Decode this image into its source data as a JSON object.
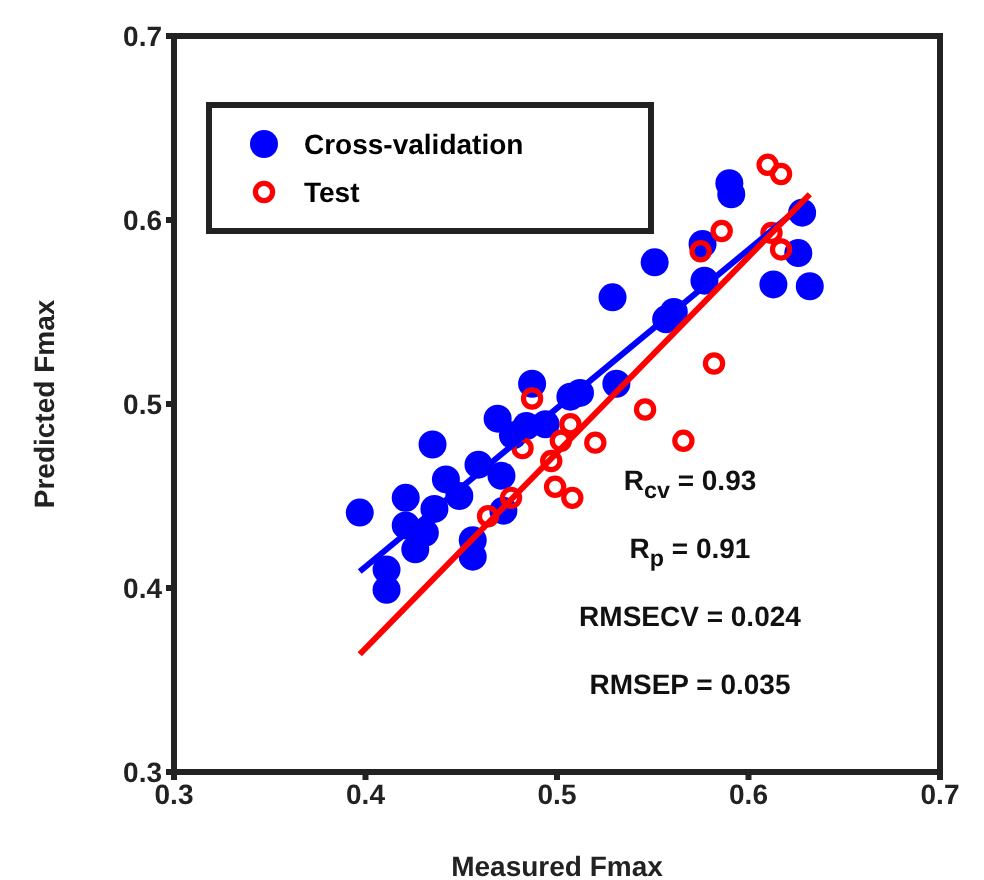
{
  "chart_data": {
    "type": "scatter",
    "xlabel": "Measured Fmax",
    "ylabel": "Predicted Fmax",
    "xlim": [
      0.3,
      0.7
    ],
    "xticks": [
      0.3,
      0.4,
      0.5,
      0.6,
      0.7
    ],
    "ylim": [
      0.3,
      0.7
    ],
    "yticks": [
      0.3,
      0.4,
      0.5,
      0.6,
      0.7
    ],
    "grid": false,
    "legend": "top left",
    "marker": "circle",
    "series": [
      {
        "name": "Cross-validation",
        "color": "#0000ff",
        "x": [
          0.397,
          0.421,
          0.435,
          0.469,
          0.487,
          0.442,
          0.459,
          0.471,
          0.449,
          0.436,
          0.421,
          0.431,
          0.426,
          0.456,
          0.456,
          0.472,
          0.411,
          0.411,
          0.477,
          0.484,
          0.494,
          0.507,
          0.512,
          0.531,
          0.529,
          0.551,
          0.557,
          0.561,
          0.577,
          0.576,
          0.59,
          0.591,
          0.628,
          0.626,
          0.613,
          0.632
        ],
        "values": [
          0.441,
          0.449,
          0.478,
          0.492,
          0.511,
          0.459,
          0.467,
          0.461,
          0.45,
          0.443,
          0.434,
          0.43,
          0.421,
          0.426,
          0.417,
          0.442,
          0.41,
          0.399,
          0.483,
          0.488,
          0.489,
          0.504,
          0.506,
          0.511,
          0.558,
          0.577,
          0.546,
          0.55,
          0.567,
          0.587,
          0.62,
          0.614,
          0.604,
          0.582,
          0.565,
          0.564
        ]
      },
      {
        "name": "Test",
        "color": "#ff0000",
        "x": [
          0.61,
          0.617,
          0.586,
          0.575,
          0.612,
          0.617,
          0.582,
          0.546,
          0.566,
          0.487,
          0.507,
          0.52,
          0.502,
          0.482,
          0.497,
          0.499,
          0.508,
          0.476,
          0.464
        ],
        "values": [
          0.63,
          0.625,
          0.594,
          0.583,
          0.593,
          0.584,
          0.522,
          0.497,
          0.48,
          0.503,
          0.489,
          0.479,
          0.48,
          0.476,
          0.469,
          0.455,
          0.449,
          0.449,
          0.439
        ]
      },
      {
        "type": "line",
        "marker": "none",
        "color": "#0000ff",
        "x": [
          0.397,
          0.628
        ],
        "values": [
          0.409,
          0.608
        ]
      },
      {
        "type": "line",
        "marker": "none",
        "color": "#ff0000",
        "x": [
          0.397,
          0.632
        ],
        "values": [
          0.364,
          0.614
        ]
      }
    ],
    "annotations": [
      "R$_{cv}$ = 0.93",
      "R$_{p}$ = 0.91",
      "RMSECV = 0.024",
      "RMSEP = 0.035"
    ]
  }
}
